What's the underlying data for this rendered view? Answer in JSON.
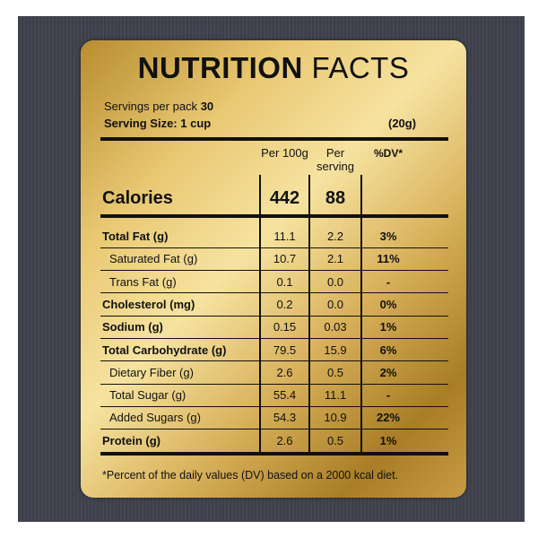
{
  "header": {
    "title_bold": "NUTRITION",
    "title_rest": "FACTS",
    "servings_label": "Servings per pack",
    "servings_value": "30",
    "serving_size": "Serving Size: 1 cup",
    "serving_weight": "(20g)"
  },
  "table": {
    "columns": [
      "Per 100g",
      "Per serving",
      "%DV*"
    ],
    "calories": {
      "label": "Calories",
      "per_100g": "442",
      "per_serving": "88"
    },
    "rows": [
      [
        "Total Fat (g)",
        "11.1",
        "2.2",
        "3%"
      ],
      [
        "Saturated Fat (g)",
        "10.7",
        "2.1",
        "11%"
      ],
      [
        "Trans Fat (g)",
        "0.1",
        "0.0",
        "-"
      ],
      [
        "Cholesterol (mg)",
        "0.2",
        "0.0",
        "0%"
      ],
      [
        "Sodium (g)",
        "0.15",
        "0.03",
        "1%"
      ],
      [
        "Total Carbohydrate (g)",
        "79.5",
        "15.9",
        "6%"
      ],
      [
        "Dietary Fiber (g)",
        "2.6",
        "0.5",
        "2%"
      ],
      [
        "Total Sugar (g)",
        "55.4",
        "11.1",
        "-"
      ],
      [
        "Added Sugars (g)",
        "54.3",
        "10.9",
        "22%"
      ],
      [
        "Protein (g)",
        "2.6",
        "0.5",
        "1%"
      ]
    ]
  },
  "footnote": "*Percent of the daily values (DV) based on a 2000 kcal diet."
}
